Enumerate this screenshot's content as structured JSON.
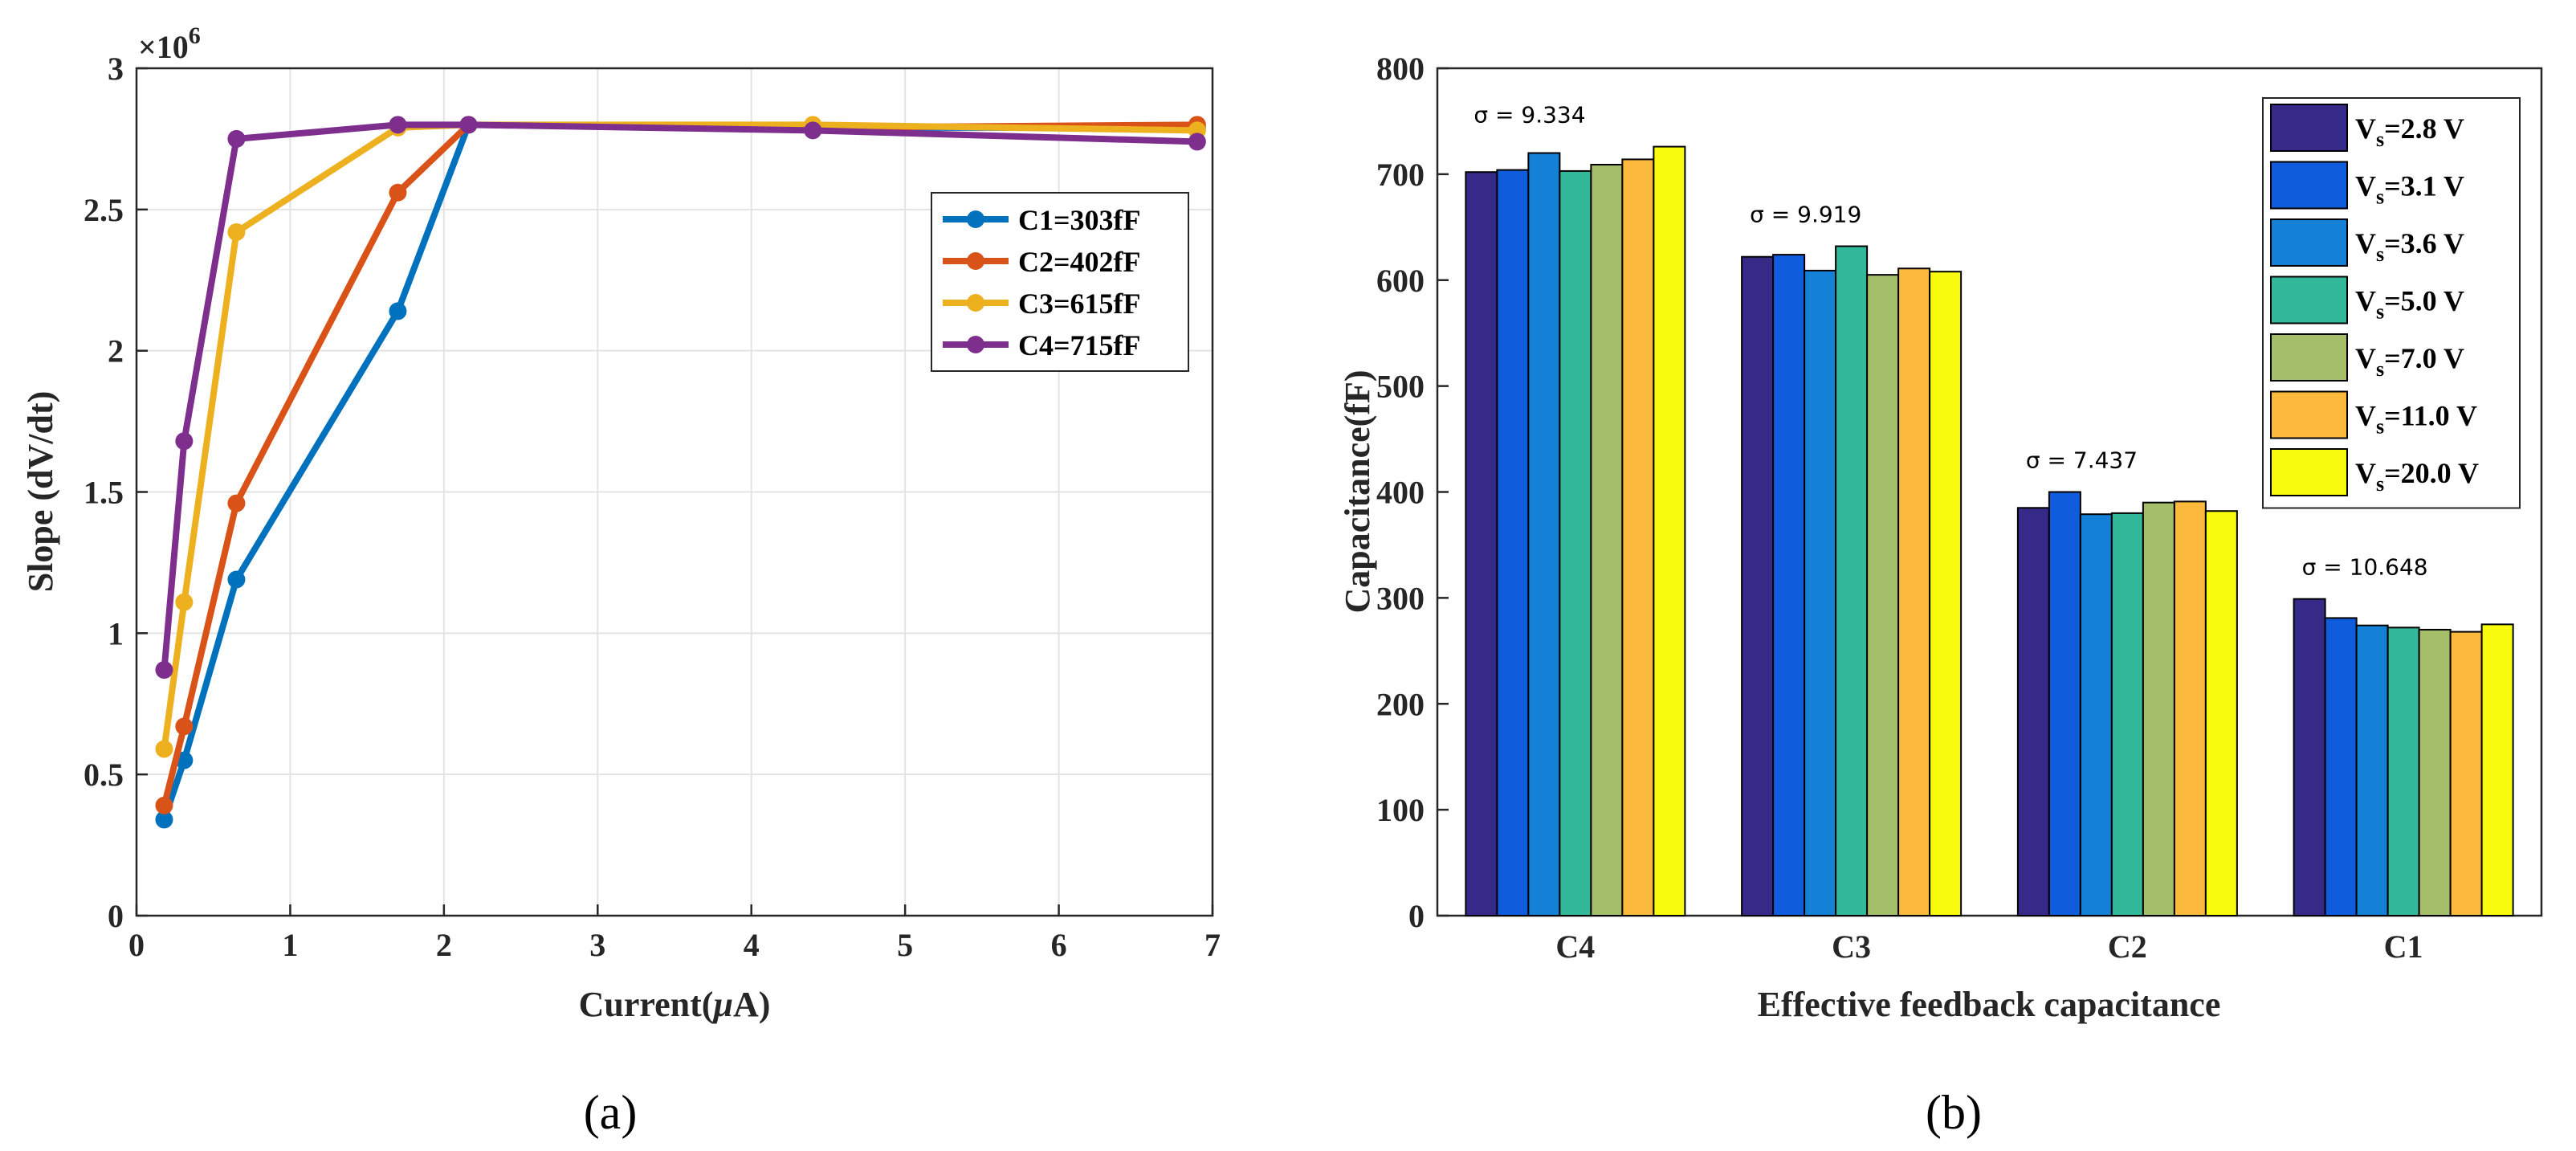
{
  "chart_data": [
    {
      "panel": "(a)",
      "type": "line",
      "xlabel": "Current(",
      "xlabel_mu": "μ",
      "xlabel_tail": "A)",
      "ylabel": "Slope (dV/dt)",
      "y_multiplier": "×10",
      "y_exponent": "6",
      "xlim": [
        0,
        7
      ],
      "ylim": [
        0,
        3
      ],
      "xticks": [
        0,
        1,
        2,
        3,
        4,
        5,
        6,
        7
      ],
      "yticks": [
        0,
        0.5,
        1,
        1.5,
        2,
        2.5,
        3
      ],
      "ytick_labels": [
        "0",
        "0.5",
        "1",
        "1.5",
        "2",
        "2.5",
        "3"
      ],
      "grid": true,
      "legend_position": "upper-right",
      "series": [
        {
          "name": "C1=303fF",
          "color": "#0072BD",
          "x": [
            0.18,
            0.31,
            0.65,
            1.7,
            2.16,
            4.4,
            6.9
          ],
          "y": [
            0.34,
            0.55,
            1.19,
            2.14,
            2.8,
            2.79,
            2.79
          ]
        },
        {
          "name": "C2=402fF",
          "color": "#D95319",
          "x": [
            0.18,
            0.31,
            0.65,
            1.7,
            2.16,
            4.4,
            6.9
          ],
          "y": [
            0.39,
            0.67,
            1.46,
            2.56,
            2.8,
            2.79,
            2.8
          ]
        },
        {
          "name": "C3=615fF",
          "color": "#EDB120",
          "x": [
            0.18,
            0.31,
            0.65,
            1.7,
            2.16,
            4.4,
            6.9
          ],
          "y": [
            0.59,
            1.11,
            2.42,
            2.79,
            2.8,
            2.8,
            2.78
          ]
        },
        {
          "name": "C4=715fF",
          "color": "#7E2F8E",
          "x": [
            0.18,
            0.31,
            0.65,
            1.7,
            2.16,
            4.4,
            6.9
          ],
          "y": [
            0.87,
            1.68,
            2.75,
            2.8,
            2.8,
            2.78,
            2.74
          ]
        }
      ]
    },
    {
      "panel": "(b)",
      "type": "bar",
      "xlabel": "Effective feedback capacitance",
      "ylabel": "Capacitance(fF)",
      "ylim": [
        0,
        800
      ],
      "yticks": [
        0,
        100,
        200,
        300,
        400,
        500,
        600,
        700,
        800
      ],
      "categories": [
        "C4",
        "C3",
        "C2",
        "C1"
      ],
      "legend_position": "upper-right",
      "annotations": [
        "σ = 9.334",
        "σ = 9.919",
        "σ = 7.437",
        "σ = 10.648"
      ],
      "series": [
        {
          "name_main": "V",
          "name_sub": "s",
          "name_tail": "=2.8 V",
          "color": "#352A87",
          "values": [
            702,
            622,
            385,
            299
          ]
        },
        {
          "name_main": "V",
          "name_sub": "s",
          "name_tail": "=3.1 V",
          "color": "#0F5CDD",
          "values": [
            704,
            624,
            400,
            281
          ]
        },
        {
          "name_main": "V",
          "name_sub": "s",
          "name_tail": "=3.6 V",
          "color": "#1481D6",
          "values": [
            720,
            609,
            379,
            274
          ]
        },
        {
          "name_main": "V",
          "name_sub": "s",
          "name_tail": "=5.0 V",
          "color": "#32B99A",
          "values": [
            703,
            632,
            380,
            272
          ]
        },
        {
          "name_main": "V",
          "name_sub": "s",
          "name_tail": "=7.0 V",
          "color": "#A5BE6A",
          "values": [
            709,
            605,
            390,
            270
          ]
        },
        {
          "name_main": "V",
          "name_sub": "s",
          "name_tail": "=11.0 V",
          "color": "#FCBA3D",
          "values": [
            714,
            611,
            391,
            268
          ]
        },
        {
          "name_main": "V",
          "name_sub": "s",
          "name_tail": "=20.0 V",
          "color": "#F9FB0E",
          "values": [
            726,
            608,
            382,
            275
          ]
        }
      ]
    }
  ]
}
